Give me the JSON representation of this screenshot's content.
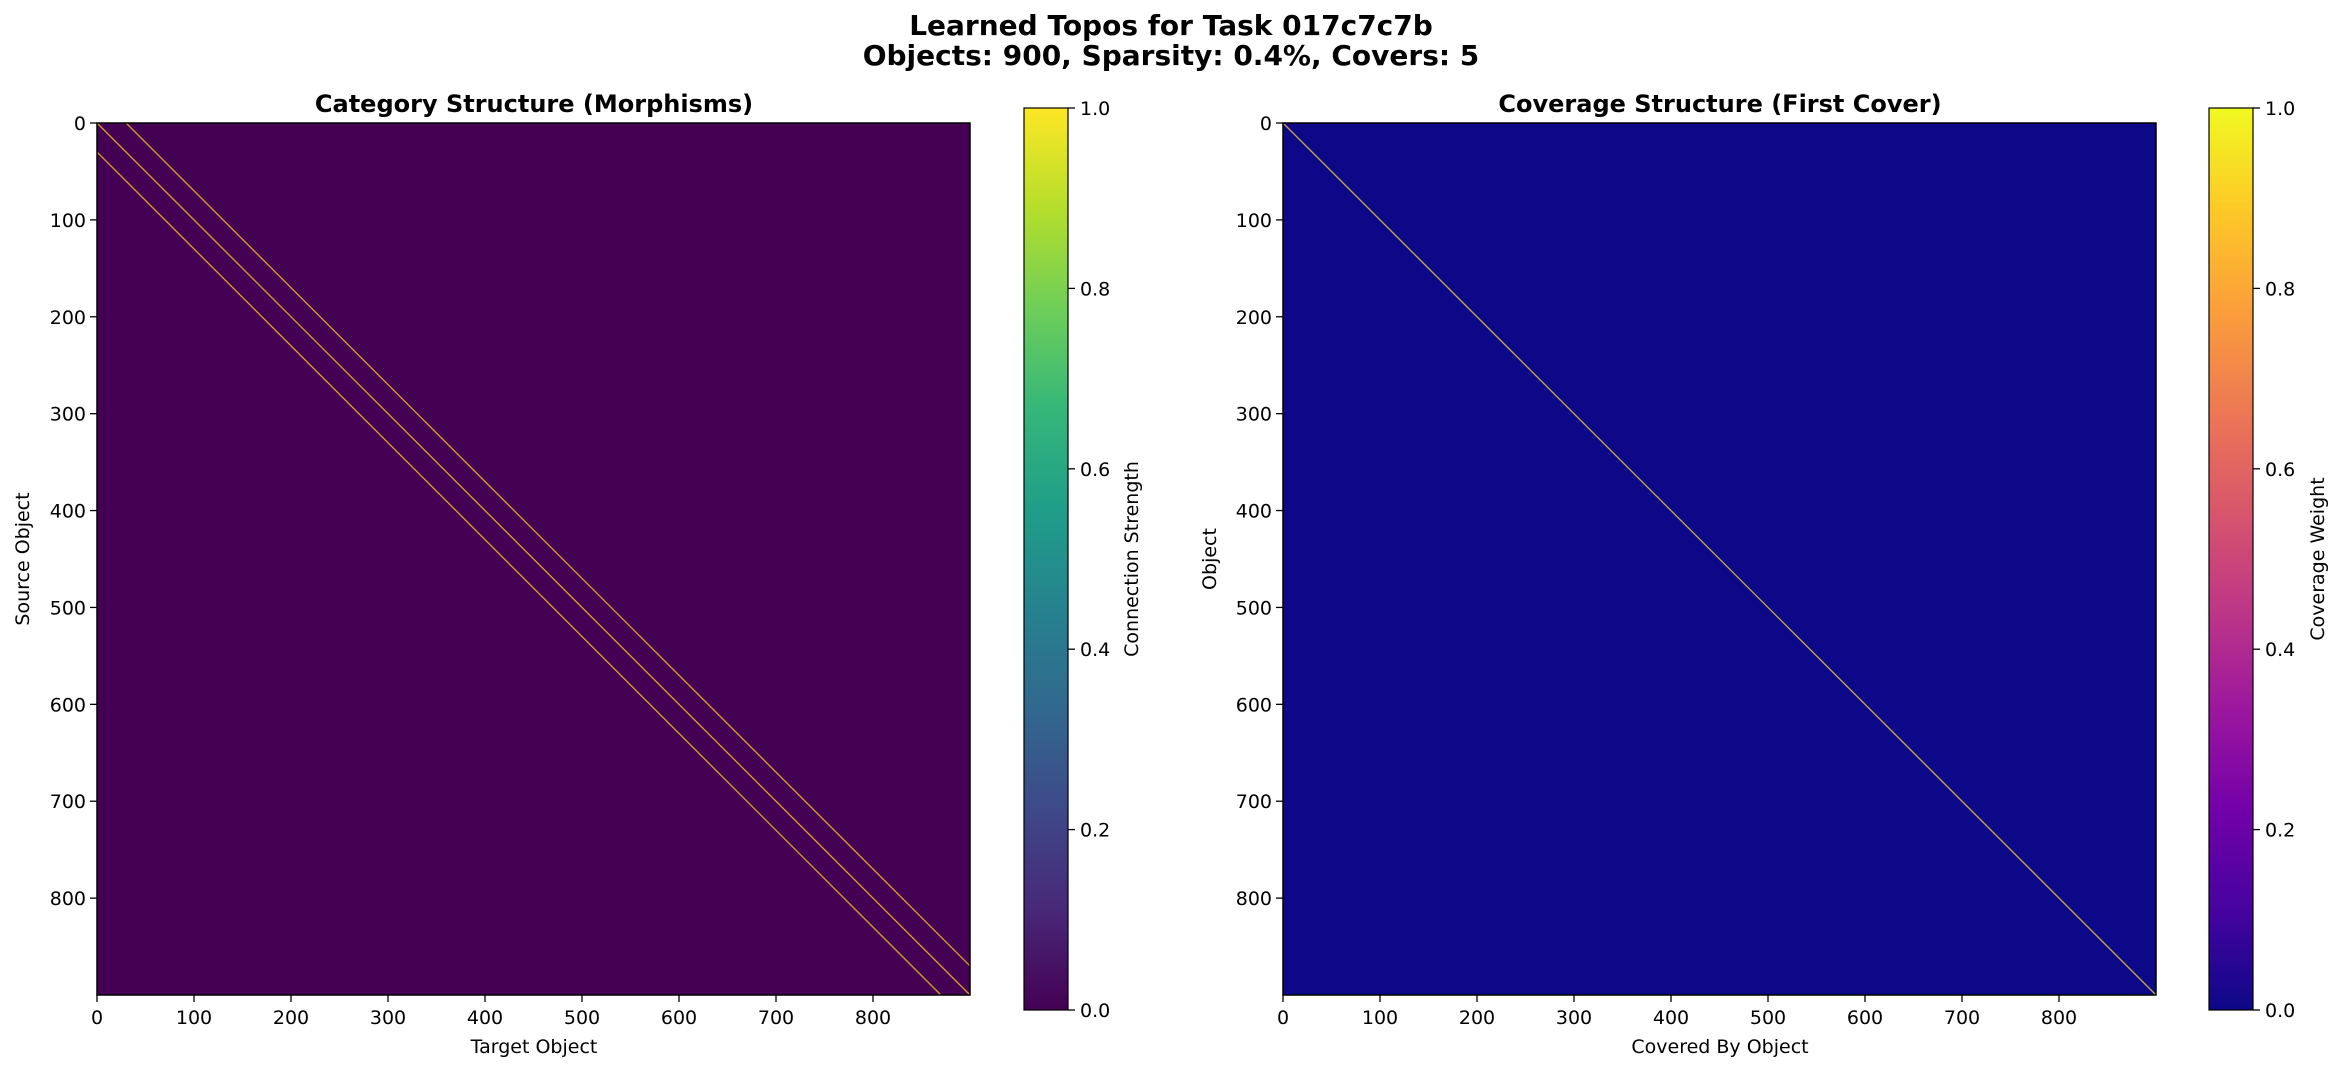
{
  "figure": {
    "title_line1": "Learned Topos for Task 017c7c7b",
    "title_line2": "Objects: 900, Sparsity: 0.4%, Covers: 5"
  },
  "chart_data": [
    {
      "type": "heatmap",
      "title": "Category Structure (Morphisms)",
      "xlabel": "Target Object",
      "ylabel": "Source Object",
      "xlim": [
        0,
        900
      ],
      "ylim": [
        900,
        0
      ],
      "xticks": [
        0,
        100,
        200,
        300,
        400,
        500,
        600,
        700,
        800
      ],
      "yticks": [
        0,
        100,
        200,
        300,
        400,
        500,
        600,
        700,
        800
      ],
      "background_value": 0.0,
      "colormap": "viridis",
      "colormap_stops": [
        "#440154",
        "#482878",
        "#3e4989",
        "#31688e",
        "#26828e",
        "#1f9e89",
        "#35b779",
        "#6ece58",
        "#b5de2b",
        "#fde725"
      ],
      "background_color": "#440154",
      "diagonals": [
        {
          "offset": -30,
          "value": 0.75
        },
        {
          "offset": 0,
          "value": 0.55
        },
        {
          "offset": 30,
          "value": 0.75
        }
      ],
      "diagonal_color": "#e0a92b",
      "colorbar": {
        "label": "Connection Strength",
        "range": [
          0.0,
          1.0
        ],
        "ticks": [
          "0.0",
          "0.2",
          "0.4",
          "0.6",
          "0.8",
          "1.0"
        ]
      }
    },
    {
      "type": "heatmap",
      "title": "Coverage Structure (First Cover)",
      "xlabel": "Covered By Object",
      "ylabel": "Object",
      "xlim": [
        0,
        900
      ],
      "ylim": [
        900,
        0
      ],
      "xticks": [
        0,
        100,
        200,
        300,
        400,
        500,
        600,
        700,
        800
      ],
      "yticks": [
        0,
        100,
        200,
        300,
        400,
        500,
        600,
        700,
        800
      ],
      "background_value": 0.0,
      "colormap": "plasma",
      "colormap_stops": [
        "#0d0887",
        "#46039f",
        "#7201a8",
        "#9c179e",
        "#bd3786",
        "#d8576b",
        "#ed7953",
        "#fb9f3a",
        "#fdca26",
        "#f0f921"
      ],
      "background_color": "#0d0887",
      "diagonals": [
        {
          "offset": 0,
          "value": 0.8
        }
      ],
      "diagonal_color": "#d7b04a",
      "colorbar": {
        "label": "Coverage Weight",
        "range": [
          0.0,
          1.0
        ],
        "ticks": [
          "0.0",
          "0.2",
          "0.4",
          "0.6",
          "0.8",
          "1.0"
        ]
      }
    }
  ]
}
